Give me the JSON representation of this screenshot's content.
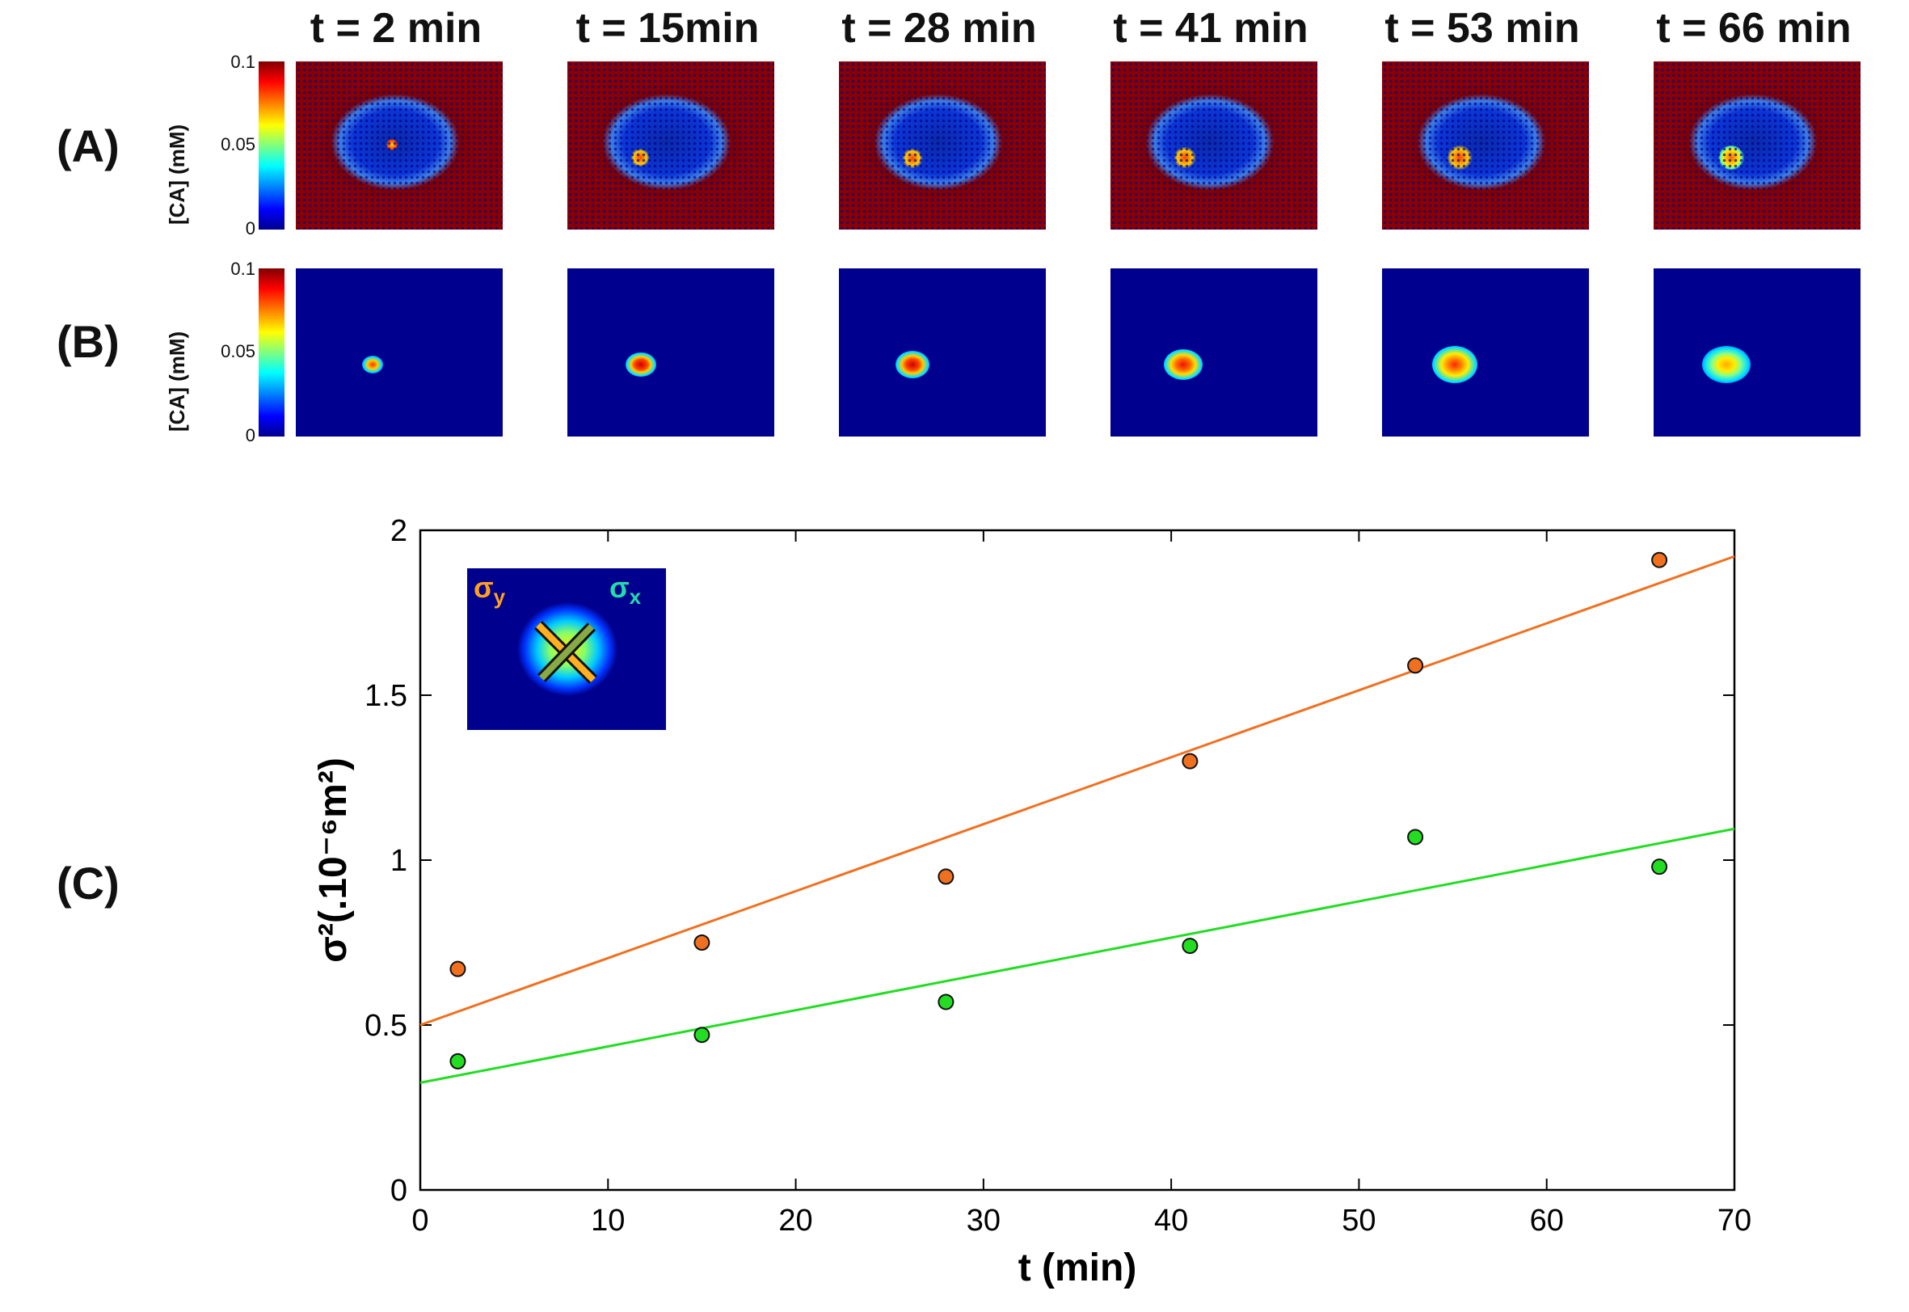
{
  "time_labels": [
    "t = 2 min",
    "t = 15min",
    "t = 28 min",
    "t = 41 min",
    "t = 53 min",
    "t = 66 min"
  ],
  "rows": {
    "A": {
      "label": "(A)"
    },
    "B": {
      "label": "(B)"
    },
    "C": {
      "label": "(C)"
    }
  },
  "colorbar": {
    "title": "[CA] (mM)",
    "ticks": [
      "0.1",
      "0.05",
      "0"
    ]
  },
  "inset": {
    "sigma_y": "σ",
    "sigma_y_sub": "y",
    "sigma_x": "σ",
    "sigma_x_sub": "x"
  },
  "chart_data": {
    "type": "scatter",
    "title": "",
    "xlabel": "t (min)",
    "ylabel": "σ²(.10⁻⁶m²)",
    "xlim": [
      0,
      70
    ],
    "ylim": [
      0,
      2
    ],
    "xticks": [
      0,
      10,
      20,
      30,
      40,
      50,
      60,
      70
    ],
    "yticks": [
      0,
      0.5,
      1,
      1.5,
      2
    ],
    "yticklabels": [
      "0",
      "0.5",
      "1",
      "1.5",
      "2"
    ],
    "series": [
      {
        "name": "σy",
        "color": "#f07020",
        "x": [
          2,
          15,
          28,
          41,
          53,
          66
        ],
        "y": [
          0.67,
          0.75,
          0.95,
          1.3,
          1.59,
          1.91
        ],
        "fit": {
          "intercept": 0.5,
          "slope": 0.0203
        }
      },
      {
        "name": "σx",
        "color": "#22dd22",
        "x": [
          2,
          15,
          28,
          41,
          53,
          66
        ],
        "y": [
          0.39,
          0.47,
          0.57,
          0.74,
          1.07,
          0.98
        ],
        "fit": {
          "intercept": 0.325,
          "slope": 0.011
        }
      }
    ]
  }
}
